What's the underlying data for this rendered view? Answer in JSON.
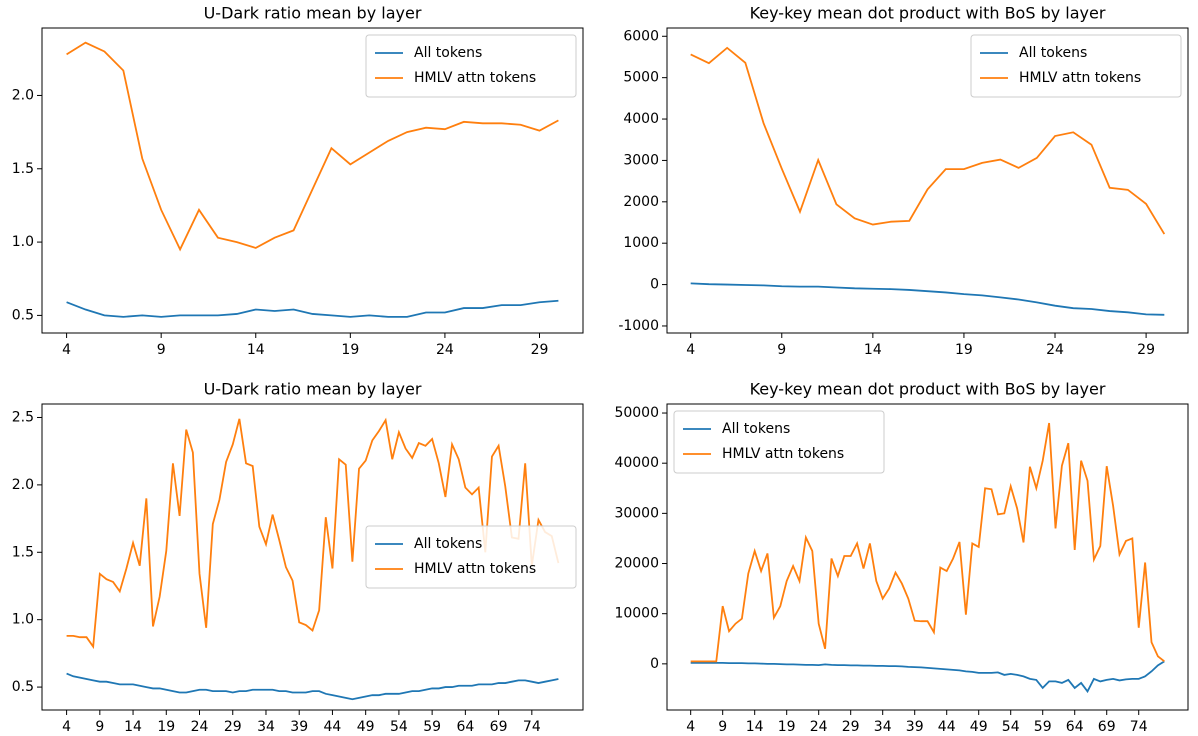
{
  "chart_data": [
    {
      "type": "line",
      "title": "U-Dark ratio mean by layer",
      "legend": "upper right",
      "x": [
        4,
        5,
        6,
        7,
        8,
        9,
        10,
        11,
        12,
        13,
        14,
        15,
        16,
        17,
        18,
        19,
        20,
        21,
        22,
        23,
        24,
        25,
        26,
        27,
        28,
        29,
        30
      ],
      "series": [
        {
          "name": "All tokens",
          "color": "#1f77b4",
          "values": [
            0.59,
            0.54,
            0.5,
            0.49,
            0.5,
            0.49,
            0.5,
            0.5,
            0.5,
            0.51,
            0.54,
            0.53,
            0.54,
            0.51,
            0.5,
            0.49,
            0.5,
            0.49,
            0.49,
            0.52,
            0.52,
            0.55,
            0.55,
            0.57,
            0.57,
            0.59,
            0.6
          ]
        },
        {
          "name": "HMLV attn tokens",
          "color": "#ff7f0e",
          "values": [
            2.28,
            2.36,
            2.3,
            2.17,
            1.57,
            1.22,
            0.95,
            1.22,
            1.03,
            1.0,
            0.96,
            1.03,
            1.08,
            1.36,
            1.64,
            1.53,
            1.61,
            1.69,
            1.75,
            1.78,
            1.77,
            1.82,
            1.81,
            1.81,
            1.8,
            1.76,
            1.83
          ]
        }
      ],
      "xlim": [
        2.7,
        31.3
      ],
      "xticks": [
        4,
        9,
        14,
        19,
        24,
        29
      ],
      "ylim": [
        0.38,
        2.46
      ],
      "yticks": [
        0.5,
        {
          "value": 1,
          "label": "1.0"
        },
        1.5,
        {
          "value": 2,
          "label": "2.0"
        }
      ]
    },
    {
      "type": "line",
      "title": "Key-key mean dot product with BoS by layer",
      "legend": "upper right",
      "x": [
        4,
        5,
        6,
        7,
        8,
        9,
        10,
        11,
        12,
        13,
        14,
        15,
        16,
        17,
        18,
        19,
        20,
        21,
        22,
        23,
        24,
        25,
        26,
        27,
        28,
        29,
        30
      ],
      "series": [
        {
          "name": "All tokens",
          "color": "#1f77b4",
          "values": [
            30,
            10,
            0,
            -10,
            -20,
            -40,
            -50,
            -50,
            -70,
            -90,
            -100,
            -110,
            -130,
            -160,
            -190,
            -230,
            -260,
            -310,
            -360,
            -430,
            -510,
            -570,
            -590,
            -640,
            -670,
            -720,
            -730
          ]
        },
        {
          "name": "HMLV attn tokens",
          "color": "#ff7f0e",
          "values": [
            5560,
            5350,
            5720,
            5360,
            3900,
            2800,
            1760,
            3010,
            1940,
            1600,
            1450,
            1520,
            1540,
            2300,
            2790,
            2790,
            2940,
            3020,
            2820,
            3060,
            3590,
            3680,
            3380,
            2340,
            2290,
            1950,
            1220
          ]
        }
      ],
      "xlim": [
        2.7,
        31.3
      ],
      "xticks": [
        4,
        9,
        14,
        19,
        24,
        29
      ],
      "ylim": [
        -1170,
        6200
      ],
      "yticks": [
        -1000,
        0,
        1000,
        2000,
        3000,
        4000,
        5000,
        6000
      ]
    },
    {
      "type": "line",
      "title": "U-Dark ratio mean by layer",
      "legend": "center right",
      "x": [
        4,
        5,
        6,
        7,
        8,
        9,
        10,
        11,
        12,
        13,
        14,
        15,
        16,
        17,
        18,
        19,
        20,
        21,
        22,
        23,
        24,
        25,
        26,
        27,
        28,
        29,
        30,
        31,
        32,
        33,
        34,
        35,
        36,
        37,
        38,
        39,
        40,
        41,
        42,
        43,
        44,
        45,
        46,
        47,
        48,
        49,
        50,
        51,
        52,
        53,
        54,
        55,
        56,
        57,
        58,
        59,
        60,
        61,
        62,
        63,
        64,
        65,
        66,
        67,
        68,
        69,
        70,
        71,
        72,
        73,
        74,
        75,
        76,
        77,
        78
      ],
      "series": [
        {
          "name": "All tokens",
          "color": "#1f77b4",
          "values": [
            0.6,
            0.58,
            0.57,
            0.56,
            0.55,
            0.54,
            0.54,
            0.53,
            0.52,
            0.52,
            0.52,
            0.51,
            0.5,
            0.49,
            0.49,
            0.48,
            0.47,
            0.46,
            0.46,
            0.47,
            0.48,
            0.48,
            0.47,
            0.47,
            0.47,
            0.46,
            0.47,
            0.47,
            0.48,
            0.48,
            0.48,
            0.48,
            0.47,
            0.47,
            0.46,
            0.46,
            0.46,
            0.47,
            0.47,
            0.45,
            0.44,
            0.43,
            0.42,
            0.41,
            0.42,
            0.43,
            0.44,
            0.44,
            0.45,
            0.45,
            0.45,
            0.46,
            0.47,
            0.47,
            0.48,
            0.49,
            0.49,
            0.5,
            0.5,
            0.51,
            0.51,
            0.51,
            0.52,
            0.52,
            0.52,
            0.53,
            0.53,
            0.54,
            0.55,
            0.55,
            0.54,
            0.53,
            0.54,
            0.55,
            0.56
          ]
        },
        {
          "name": "HMLV attn tokens",
          "color": "#ff7f0e",
          "values": [
            0.88,
            0.88,
            0.87,
            0.87,
            0.8,
            1.34,
            1.3,
            1.28,
            1.21,
            1.38,
            1.57,
            1.4,
            1.9,
            0.95,
            1.17,
            1.51,
            2.16,
            1.77,
            2.41,
            2.24,
            1.34,
            0.94,
            1.71,
            1.89,
            2.17,
            2.3,
            2.49,
            2.16,
            2.14,
            1.69,
            1.56,
            1.78,
            1.59,
            1.39,
            1.29,
            0.98,
            0.96,
            0.92,
            1.07,
            1.76,
            1.38,
            2.19,
            2.15,
            1.43,
            2.12,
            2.18,
            2.33,
            2.4,
            2.48,
            2.19,
            2.39,
            2.27,
            2.2,
            2.31,
            2.29,
            2.34,
            2.16,
            1.91,
            2.3,
            2.19,
            1.98,
            1.93,
            1.98,
            1.5,
            2.21,
            2.29,
            1.99,
            1.61,
            1.6,
            2.16,
            1.4,
            1.74,
            1.65,
            1.62,
            1.42
          ]
        }
      ],
      "xlim": [
        0.3,
        81.7
      ],
      "xticks": [
        4,
        9,
        14,
        19,
        24,
        29,
        34,
        39,
        44,
        49,
        54,
        59,
        64,
        69,
        74
      ],
      "ylim": [
        0.33,
        2.6
      ],
      "yticks": [
        0.5,
        {
          "value": 1,
          "label": "1.0"
        },
        1.5,
        {
          "value": 2,
          "label": "2.0"
        },
        2.5
      ]
    },
    {
      "type": "line",
      "title": "Key-key mean dot product with BoS by layer",
      "legend": "upper left",
      "x": [
        4,
        5,
        6,
        7,
        8,
        9,
        10,
        11,
        12,
        13,
        14,
        15,
        16,
        17,
        18,
        19,
        20,
        21,
        22,
        23,
        24,
        25,
        26,
        27,
        28,
        29,
        30,
        31,
        32,
        33,
        34,
        35,
        36,
        37,
        38,
        39,
        40,
        41,
        42,
        43,
        44,
        45,
        46,
        47,
        48,
        49,
        50,
        51,
        52,
        53,
        54,
        55,
        56,
        57,
        58,
        59,
        60,
        61,
        62,
        63,
        64,
        65,
        66,
        67,
        68,
        69,
        70,
        71,
        72,
        73,
        74,
        75,
        76,
        77,
        78
      ],
      "series": [
        {
          "name": "All tokens",
          "color": "#1f77b4",
          "values": [
            200,
            200,
            200,
            200,
            200,
            200,
            150,
            150,
            150,
            100,
            100,
            50,
            0,
            0,
            -50,
            -100,
            -100,
            -150,
            -200,
            -200,
            -250,
            -100,
            -200,
            -250,
            -250,
            -300,
            -300,
            -350,
            -350,
            -400,
            -400,
            -450,
            -450,
            -500,
            -600,
            -650,
            -700,
            -800,
            -900,
            -1000,
            -1100,
            -1200,
            -1300,
            -1500,
            -1600,
            -1800,
            -1800,
            -1800,
            -1700,
            -2200,
            -2000,
            -2200,
            -2500,
            -3000,
            -3200,
            -4800,
            -3500,
            -3500,
            -3800,
            -3200,
            -4800,
            -3800,
            -5500,
            -3000,
            -3500,
            -3200,
            -3000,
            -3300,
            -3100,
            -3000,
            -3000,
            -2500,
            -1500,
            -300,
            500
          ]
        },
        {
          "name": "HMLV attn tokens",
          "color": "#ff7f0e",
          "values": [
            500,
            500,
            500,
            500,
            500,
            11500,
            6500,
            8000,
            9000,
            18000,
            22500,
            18500,
            22000,
            9200,
            11500,
            16500,
            19500,
            16500,
            25200,
            22500,
            8000,
            3000,
            21000,
            17500,
            21500,
            21500,
            24000,
            19000,
            24000,
            16500,
            13000,
            15000,
            18200,
            16000,
            13000,
            8600,
            8500,
            8500,
            6300,
            19200,
            18500,
            21000,
            24300,
            9800,
            24000,
            23300,
            35000,
            34800,
            29800,
            30000,
            35400,
            31000,
            24200,
            39300,
            35000,
            40500,
            48000,
            27000,
            39500,
            44000,
            22700,
            40500,
            36500,
            20800,
            23500,
            39400,
            31500,
            21800,
            24500,
            25000,
            7200,
            20200,
            4300,
            1500,
            500
          ]
        }
      ],
      "xlim": [
        0.3,
        81.7
      ],
      "xticks": [
        4,
        9,
        14,
        19,
        24,
        29,
        34,
        39,
        44,
        49,
        54,
        59,
        64,
        69,
        74
      ],
      "ylim": [
        -9200,
        51800
      ],
      "yticks": [
        0,
        10000,
        20000,
        30000,
        40000,
        50000
      ]
    }
  ]
}
